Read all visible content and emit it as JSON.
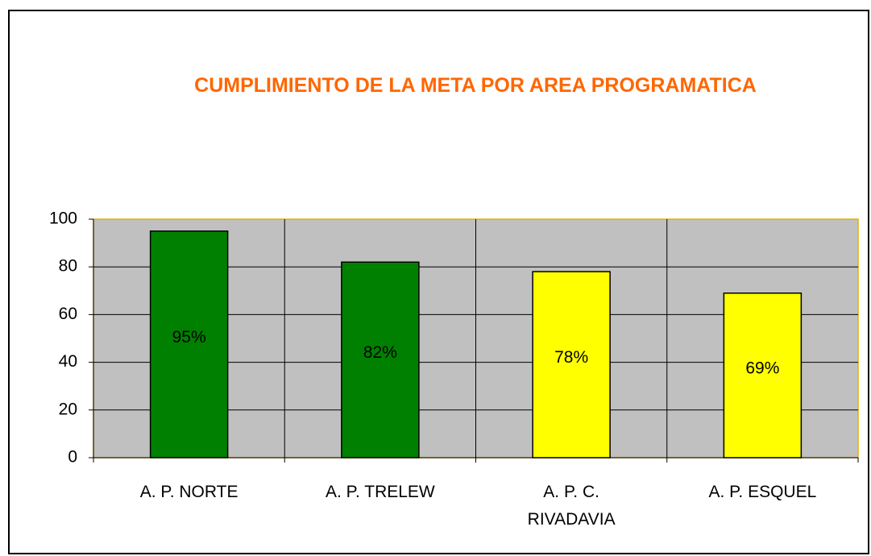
{
  "chart_data": {
    "type": "bar",
    "title": "CUMPLIMIENTO DE LA META POR AREA PROGRAMATICA",
    "categories": [
      "A. P. NORTE",
      "A. P. TRELEW",
      "A. P. C. RIVADAVIA",
      "A. P. ESQUEL"
    ],
    "values": [
      95,
      82,
      78,
      69
    ],
    "value_labels": [
      "95%",
      "82%",
      "78%",
      "69%"
    ],
    "colors": [
      "#008000",
      "#008000",
      "#ffff00",
      "#ffff00"
    ],
    "ylim": [
      0,
      100
    ],
    "yticks": [
      0,
      20,
      40,
      60,
      80,
      100
    ],
    "grid": true
  }
}
